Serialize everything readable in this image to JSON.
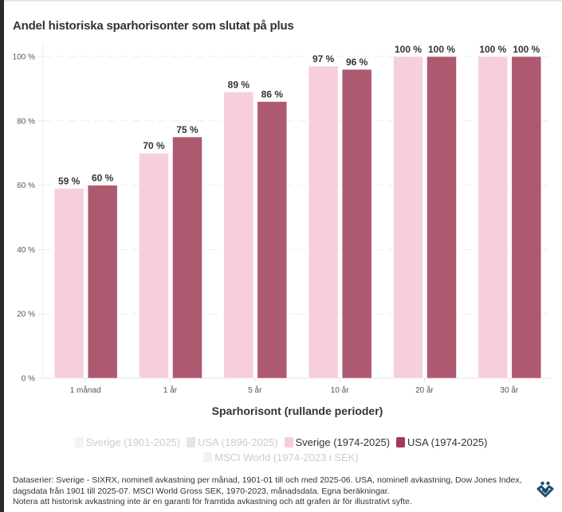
{
  "title": "Andel historiska sparhorisonter som slutat på plus",
  "chart_data": {
    "type": "bar",
    "title": "Andel historiska sparhorisonter som slutat på plus",
    "xlabel": "Sparhorisont (rullande perioder)",
    "ylabel": "",
    "ylim": [
      0,
      100
    ],
    "yticks": [
      0,
      20,
      40,
      60,
      80,
      100
    ],
    "ytick_labels": [
      "0 %",
      "20 %",
      "40 %",
      "60 %",
      "80 %",
      "100 %"
    ],
    "grid": true,
    "categories": [
      "1 månad",
      "1 år",
      "5 år",
      "10 år",
      "20 år",
      "30 år"
    ],
    "series": [
      {
        "name": "Sverige (1974-2025)",
        "color": "#f7cfdc",
        "values": [
          59,
          70,
          89,
          97,
          100,
          100
        ],
        "labels": [
          "59 %",
          "70 %",
          "89 %",
          "97 %",
          "100 %",
          "100 %"
        ]
      },
      {
        "name": "USA (1974-2025)",
        "color": "#ad5a71",
        "values": [
          60,
          75,
          86,
          96,
          100,
          100
        ],
        "labels": [
          "60 %",
          "75 %",
          "86 %",
          "96 %",
          "100 %",
          "100 %"
        ]
      }
    ],
    "legend_position": "bottom"
  },
  "legend": {
    "row1": [
      {
        "label": "Sverige (1901-2025)",
        "color": "#cfe3f0",
        "active": false
      },
      {
        "label": "USA (1896-2025)",
        "color": "#aab6c2",
        "active": false
      },
      {
        "label": "Sverige (1974-2025)",
        "color": "#f7cfdc",
        "active": true
      },
      {
        "label": "USA (1974-2025)",
        "color": "#a3385a",
        "active": true
      }
    ],
    "row2": [
      {
        "label": "MSCI World (1974-2023 i SEK)",
        "color": "#e6d5da",
        "active": false
      }
    ]
  },
  "footnote": {
    "line1": "Dataserier: Sverige - SIXRX, nominell avkastning per månad, 1901-01 till och med 2025-06. USA, nominell avkastning, Dow Jones Index,",
    "line2": "dagsdata från 1901 till 2025-07. MSCI World Gross SEK, 1970-2023, månadsdata. Egna beräkningar.",
    "line3": "Notera att historisk avkastning inte är en garanti för framtida avkastning och att grafen är för illustrativt syfte."
  },
  "logo": {
    "name": "brand-logo",
    "color": "#1d4d6e"
  }
}
